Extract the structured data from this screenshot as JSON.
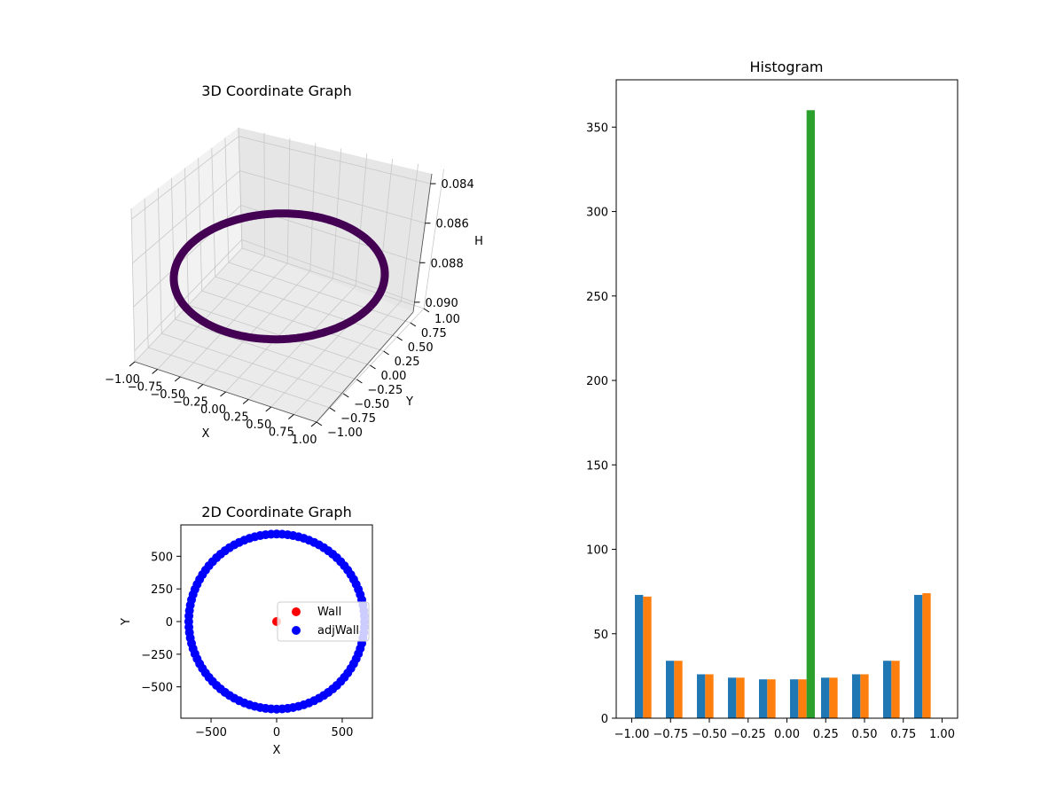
{
  "colors": {
    "ring_3d": "#440154",
    "wall": "#ff0000",
    "adj_wall": "#0000ff",
    "hist_series": [
      "#1f77b4",
      "#ff7f0e",
      "#2ca02c"
    ],
    "pane_left": "#f2f2f2",
    "pane_right": "#e6e6e6",
    "pane_floor": "#ebebeb",
    "grid": "#c8c8c8"
  },
  "chart_data": [
    {
      "type": "scatter",
      "projection": "3d",
      "title": "3D Coordinate Graph",
      "xlabel": "X",
      "ylabel": "Y",
      "zlabel": "H",
      "x_ticks": [
        "−1.00",
        "−0.75",
        "−0.50",
        "−0.25",
        "0.00",
        "0.25",
        "0.50",
        "0.75",
        "1.00"
      ],
      "y_ticks": [
        "−1.00",
        "−0.75",
        "−0.50",
        "−0.25",
        "0.00",
        "0.25",
        "0.50",
        "0.75",
        "1.00"
      ],
      "z_ticks": [
        "0.084",
        "0.086",
        "0.088",
        "0.090"
      ],
      "xlim": [
        -1,
        1
      ],
      "ylim": [
        -1,
        1
      ],
      "zlim": [
        0.0835,
        0.0905
      ],
      "z_inverted": true,
      "curve": {
        "shape": "circle",
        "radius": 1.0,
        "z": 0.087,
        "points": 360
      },
      "grid": true
    },
    {
      "type": "scatter",
      "title": "2D Coordinate Graph",
      "xlabel": "X",
      "ylabel": "Y",
      "x_ticks": [
        "−500",
        "0",
        "500"
      ],
      "y_ticks": [
        "−500",
        "−250",
        "0",
        "250",
        "500"
      ],
      "xlim": [
        -730,
        730
      ],
      "ylim": [
        -740,
        740
      ],
      "series": [
        {
          "name": "Wall",
          "points": [
            [
              0,
              0
            ]
          ]
        },
        {
          "name": "adjWall",
          "shape": "circle",
          "radius": 670,
          "count": 100
        }
      ],
      "legend_position": "center-right"
    },
    {
      "type": "bar",
      "title": "Histogram",
      "x_ticks": [
        "−1.00",
        "−0.75",
        "−0.50",
        "−0.25",
        "0.00",
        "0.25",
        "0.50",
        "0.75",
        "1.00"
      ],
      "y_ticks": [
        "0",
        "50",
        "100",
        "150",
        "200",
        "250",
        "300",
        "350"
      ],
      "xlim": [
        -1.1,
        1.1
      ],
      "ylim": [
        0,
        378
      ],
      "bin_edges": [
        -1.0,
        -0.8,
        -0.6,
        -0.4,
        -0.2,
        0.0,
        0.2,
        0.4,
        0.6,
        0.8,
        1.0
      ],
      "series": [
        {
          "values": [
            73,
            34,
            26,
            24,
            23,
            23,
            24,
            26,
            34,
            73
          ]
        },
        {
          "values": [
            72,
            34,
            26,
            24,
            23,
            23,
            24,
            26,
            34,
            74
          ]
        },
        {
          "values": [
            0,
            0,
            0,
            0,
            0,
            360,
            0,
            0,
            0,
            0
          ]
        }
      ]
    }
  ]
}
